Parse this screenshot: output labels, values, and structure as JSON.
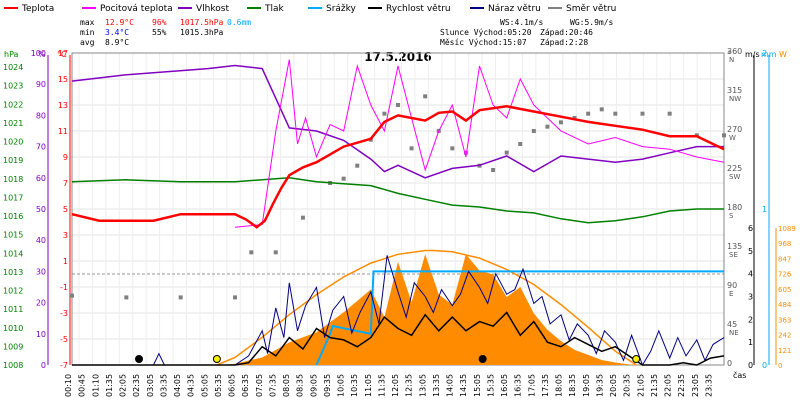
{
  "chart_data": {
    "type": "line",
    "title": "17.5.2016",
    "legend": [
      {
        "name": "Teplota",
        "color": "#ff0000"
      },
      {
        "name": "Pocitová teplota",
        "color": "#ff00ff"
      },
      {
        "name": "Vlhkost",
        "color": "#8000c0"
      },
      {
        "name": "Tlak",
        "color": "#008000"
      },
      {
        "name": "Srážky",
        "color": "#00aaff"
      },
      {
        "name": "Rychlost větru",
        "color": "#000000"
      },
      {
        "name": "Náraz větru",
        "color": "#000080"
      },
      {
        "name": "Směr větru",
        "color": "#808080"
      }
    ],
    "stats": {
      "rows": [
        {
          "label": "max",
          "temp": "12.9°C",
          "hum": "96%",
          "pres": "1017.5hPa",
          "rain": "0.6mm"
        },
        {
          "label": "min",
          "temp": "3.4°C",
          "hum": "55%",
          "pres": "1015.3hPa",
          "rain": ""
        },
        {
          "label": "avg",
          "temp": "8.9°C",
          "hum": "",
          "pres": "",
          "rain": ""
        }
      ],
      "wind": "WS:4.1m/s",
      "gust": "WG:5.9m/s",
      "sun": "Slunce Východ:05:20",
      "sunset": "Západ:20:46",
      "moon": "Měsíc Východ:15:07",
      "moonset": "Západ:2:28"
    },
    "axes": {
      "left_hpa": {
        "title": "hPa",
        "ticks": [
          "1024",
          "1023",
          "1022",
          "1021",
          "1020",
          "1019",
          "1018",
          "1017",
          "1016",
          "1015",
          "1014",
          "1013",
          "1012",
          "1011",
          "1010",
          "1009",
          "1008"
        ],
        "color": "#008000"
      },
      "left_pct": {
        "title": "%",
        "ticks": [
          "100",
          "90",
          "80",
          "70",
          "60",
          "50",
          "40",
          "30",
          "20",
          "10",
          "0"
        ],
        "color": "#8000c0"
      },
      "left_c": {
        "title": "°C",
        "ticks": [
          "17",
          "15",
          "13",
          "11",
          "9",
          "7",
          "5",
          "3",
          "1",
          "-1",
          "-3",
          "-5",
          "-7"
        ],
        "color": "#ff0000"
      },
      "right_deg": {
        "title": "°",
        "ticks": [
          {
            "v": "360",
            "d": "N"
          },
          {
            "v": "315",
            "d": "NW"
          },
          {
            "v": "270",
            "d": "W"
          },
          {
            "v": "225",
            "d": "SW"
          },
          {
            "v": "180",
            "d": "S"
          },
          {
            "v": "135",
            "d": "SE"
          },
          {
            "v": "90",
            "d": "E"
          },
          {
            "v": "45",
            "d": "NE"
          },
          {
            "v": "0",
            "d": ""
          }
        ]
      },
      "right_ms": {
        "title": "m/s",
        "ticks": [
          "6",
          "5",
          "4",
          "3",
          "2",
          "1",
          "0"
        ]
      },
      "right_mm": {
        "title": "mm",
        "ticks": [
          "2",
          "1",
          "0"
        ],
        "color": "#00aaff"
      },
      "right_w": {
        "title": "W",
        "ticks": [
          "1089",
          "968",
          "847",
          "726",
          "605",
          "484",
          "363",
          "242",
          "121",
          "0"
        ],
        "color": "#ff8c00"
      },
      "x_ticks": [
        "00:10",
        "00:45",
        "01:10",
        "01:35",
        "02:05",
        "02:35",
        "03:05",
        "03:35",
        "04:05",
        "04:35",
        "05:05",
        "05:35",
        "06:05",
        "06:35",
        "07:05",
        "07:35",
        "08:05",
        "08:35",
        "09:05",
        "09:35",
        "10:05",
        "10:35",
        "11:05",
        "11:35",
        "12:05",
        "12:35",
        "13:05",
        "13:35",
        "14:05",
        "14:35",
        "15:05",
        "15:35",
        "16:05",
        "16:35",
        "17:05",
        "17:35",
        "18:05",
        "18:35",
        "19:05",
        "19:35",
        "20:05",
        "20:35",
        "21:05",
        "21:35",
        "22:05",
        "22:35",
        "23:05",
        "23:35"
      ],
      "x_label": "čas"
    },
    "series": [
      {
        "name": "Teplota",
        "unit": "°C",
        "x": [
          0,
          1,
          2,
          3,
          4,
          5,
          6,
          6.4,
          6.8,
          7.1,
          7.4,
          7.7,
          8,
          8.5,
          9,
          9.5,
          10,
          11,
          11.5,
          12,
          13,
          13.5,
          14,
          14.5,
          15,
          16,
          17,
          18,
          19,
          20,
          21,
          22,
          23,
          24
        ],
        "values": [
          4.6,
          4.1,
          4.1,
          4.1,
          4.6,
          4.6,
          4.6,
          4.2,
          3.6,
          4.1,
          5.4,
          6.6,
          7.6,
          8.2,
          8.6,
          9.2,
          9.8,
          10.4,
          11.7,
          12.2,
          11.8,
          12.4,
          12.5,
          11.8,
          12.6,
          12.9,
          12.5,
          12.1,
          11.7,
          11.4,
          11.1,
          10.6,
          10.6,
          9.6
        ]
      },
      {
        "name": "Pocitová teplota",
        "unit": "°C",
        "x": [
          6,
          7,
          7.5,
          8,
          8.3,
          8.6,
          9,
          9.5,
          10,
          10.5,
          11,
          11.5,
          12,
          12.5,
          13,
          13.5,
          14,
          14.5,
          15,
          15.5,
          16,
          16.5,
          17,
          18,
          19,
          20,
          21,
          22,
          23,
          24
        ],
        "values": [
          3.6,
          3.8,
          11,
          16.5,
          10,
          12,
          9,
          11.5,
          11,
          16,
          13,
          11,
          16,
          12,
          8,
          11,
          13,
          9,
          16,
          13,
          12,
          15,
          13,
          11,
          10,
          10.5,
          9.8,
          9.6,
          9,
          8.6
        ]
      },
      {
        "name": "Vlhkost",
        "unit": "%",
        "x": [
          0,
          2,
          5,
          6,
          7,
          8,
          9,
          10,
          11,
          11.5,
          12,
          13,
          14,
          15,
          16,
          17,
          18,
          19,
          20,
          21,
          22,
          23,
          24
        ],
        "values": [
          91,
          93,
          95,
          96,
          95,
          76,
          75,
          72,
          66,
          62,
          64,
          60,
          63,
          64,
          67,
          62,
          67,
          66,
          65,
          66,
          68,
          70,
          70
        ]
      },
      {
        "name": "Tlak",
        "unit": "hPa",
        "x": [
          0,
          2,
          4,
          6,
          7,
          8,
          9,
          10,
          11,
          12,
          13,
          14,
          15,
          16,
          17,
          18,
          19,
          20,
          21,
          22,
          23,
          24
        ],
        "values": [
          1017.4,
          1017.5,
          1017.4,
          1017.4,
          1017.5,
          1017.6,
          1017.4,
          1017.3,
          1017.2,
          1016.8,
          1016.5,
          1016.2,
          1016.1,
          1015.9,
          1015.8,
          1015.5,
          1015.3,
          1015.4,
          1015.6,
          1015.9,
          1016,
          1016
        ]
      },
      {
        "name": "Srážky",
        "unit": "mm",
        "x": [
          9,
          9.5,
          9.6,
          11,
          11.1,
          15.6,
          24
        ],
        "values": [
          0.0,
          0.2,
          0.25,
          0.2,
          0.6,
          0.6,
          0.6
        ]
      },
      {
        "name": "Rychlost větru",
        "unit": "m/s",
        "x": [
          0,
          1,
          2,
          3,
          4,
          5,
          6,
          6.5,
          7,
          7.5,
          8,
          8.5,
          9,
          9.5,
          10,
          10.5,
          11,
          11.5,
          12,
          12.5,
          13,
          13.5,
          14,
          14.5,
          15,
          15.5,
          16,
          16.5,
          17,
          17.5,
          18,
          18.5,
          19,
          19.5,
          20,
          20.5,
          21,
          21.5,
          22,
          22.5,
          23,
          23.5,
          24
        ],
        "values": [
          0,
          0,
          0,
          0,
          0,
          0,
          0,
          0.1,
          0.8,
          0.4,
          1.2,
          0.7,
          1.6,
          1.2,
          1.1,
          0.8,
          1.2,
          2.1,
          1.6,
          1.3,
          2.2,
          1.5,
          2.1,
          1.5,
          1.9,
          1.7,
          2.3,
          1.3,
          1.9,
          1.0,
          0.8,
          1.2,
          0.9,
          0.6,
          0.8,
          0.4,
          0,
          0,
          0,
          0.1,
          0,
          0.3,
          0.4
        ]
      },
      {
        "name": "Náraz větru",
        "unit": "m/s",
        "x": [
          0,
          1,
          2,
          3,
          3.2,
          3.4,
          4,
          5,
          6,
          6.5,
          7,
          7.2,
          7.5,
          7.8,
          8,
          8.3,
          8.6,
          9,
          9.3,
          9.6,
          10,
          10.3,
          10.6,
          11,
          11.3,
          11.6,
          12,
          12.3,
          12.6,
          13,
          13.3,
          13.6,
          14,
          14.3,
          14.6,
          15,
          15.3,
          15.6,
          16,
          16.3,
          16.6,
          17,
          17.3,
          17.6,
          18,
          18.3,
          18.6,
          19,
          19.3,
          19.6,
          20,
          20.3,
          20.6,
          21,
          21.3,
          21.6,
          22,
          22.3,
          22.6,
          23,
          23.3,
          23.6,
          24
        ],
        "values": [
          0,
          0,
          0,
          0,
          0.5,
          0,
          0,
          0,
          0,
          0.4,
          1.5,
          0.5,
          2.5,
          1.2,
          3.6,
          1.5,
          2.6,
          3.4,
          1.2,
          2.4,
          3.0,
          1.4,
          2.3,
          3.2,
          1.8,
          4.8,
          3.2,
          2.1,
          3.6,
          3.0,
          2.3,
          3.3,
          2.6,
          3.1,
          4.1,
          3.4,
          2.7,
          4.0,
          3.1,
          3.3,
          4.2,
          2.7,
          3.0,
          1.8,
          2.2,
          1.1,
          1.8,
          1.3,
          0.5,
          1.5,
          1.0,
          0.2,
          1.3,
          0,
          0.6,
          1.5,
          0.3,
          1.2,
          0.4,
          1.1,
          0.2,
          0.9,
          1.2
        ]
      },
      {
        "name": "Směr větru",
        "unit": "°",
        "x": [
          0,
          2,
          4,
          6,
          6.6,
          7.5,
          8.5,
          9.5,
          10,
          10.5,
          11,
          11.5,
          12,
          12.5,
          13,
          13.5,
          14,
          14.5,
          15,
          15.5,
          16,
          16.5,
          17,
          17.5,
          18,
          18.5,
          19,
          19.5,
          20,
          21,
          22,
          23,
          24
        ],
        "values": [
          80,
          78,
          78,
          78,
          130,
          130,
          170,
          210,
          215,
          230,
          260,
          290,
          300,
          250,
          310,
          270,
          250,
          245,
          230,
          225,
          245,
          255,
          270,
          275,
          280,
          285,
          290,
          295,
          290,
          290,
          290,
          265,
          265
        ]
      },
      {
        "name": "Solar",
        "unit": "W",
        "x": [
          5.5,
          6,
          7,
          8,
          9,
          10,
          11,
          11.5,
          12,
          12.5,
          13,
          13.5,
          14,
          14.5,
          15,
          15.5,
          16,
          16.5,
          17,
          17.5,
          18,
          18.5,
          19,
          19.5,
          20,
          20.5,
          21
        ],
        "values": [
          0,
          10,
          60,
          180,
          260,
          420,
          600,
          380,
          820,
          500,
          880,
          560,
          480,
          880,
          750,
          720,
          540,
          620,
          410,
          280,
          190,
          120,
          80,
          40,
          20,
          5,
          0
        ]
      },
      {
        "name": "Solar theoretical",
        "unit": "W",
        "x": [
          5.33,
          6,
          7,
          8,
          9,
          10,
          11,
          12,
          13,
          13.3,
          14,
          15,
          16,
          17,
          18,
          19,
          20,
          20.77
        ],
        "values": [
          0,
          60,
          220,
          400,
          560,
          700,
          810,
          880,
          910,
          910,
          900,
          850,
          760,
          640,
          480,
          300,
          110,
          0
        ]
      }
    ],
    "moon_markers": [
      {
        "time": "02:28",
        "type": "moonset"
      },
      {
        "time": "05:20",
        "type": "sunrise"
      },
      {
        "time": "15:07",
        "type": "moonrise"
      },
      {
        "time": "20:46",
        "type": "sunset"
      }
    ]
  }
}
